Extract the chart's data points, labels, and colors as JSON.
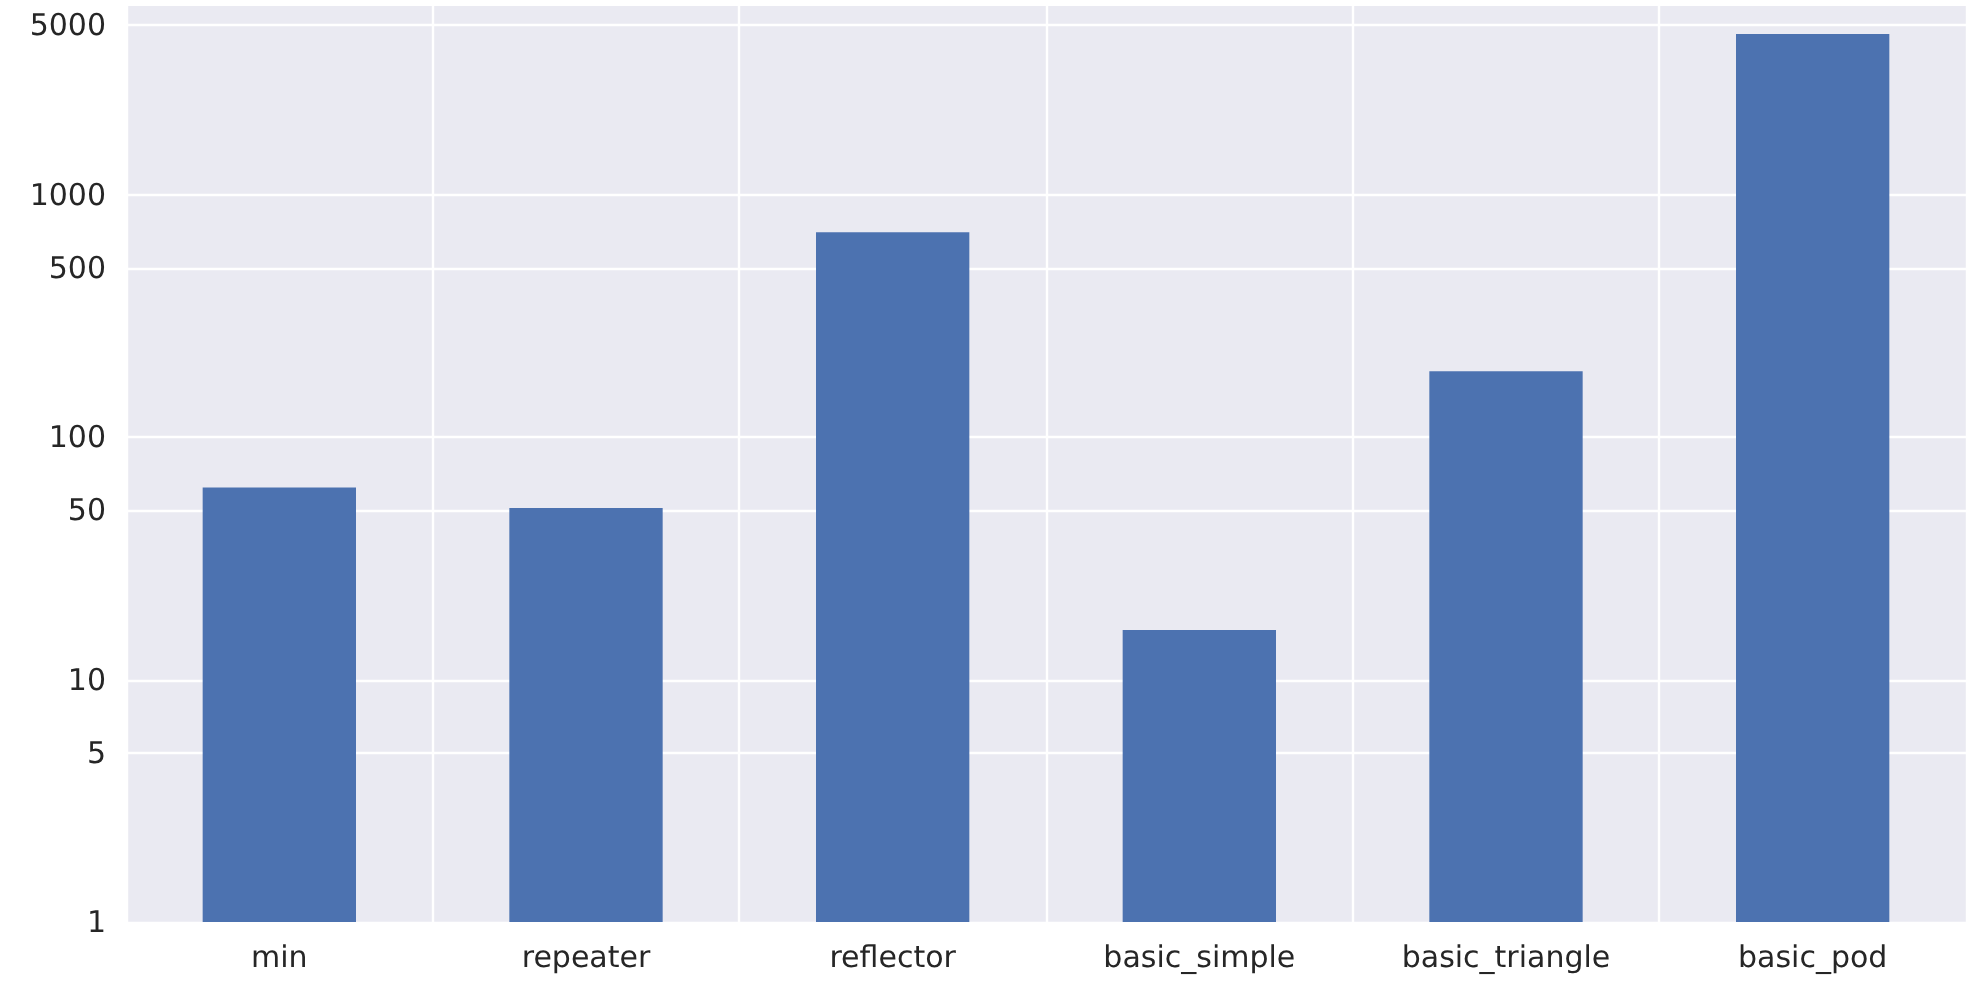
{
  "chart_data": {
    "type": "bar",
    "categories": [
      "min",
      "repeater",
      "reflector",
      "basic_simple",
      "basic_triangle",
      "basic_pod"
    ],
    "values": [
      62,
      51,
      700,
      16,
      187,
      4600
    ],
    "color": "#4c72b0",
    "log": "y",
    "ylim": [
      1,
      6000
    ],
    "yticks": [
      1,
      5,
      10,
      50,
      100,
      500,
      1000,
      5000
    ],
    "grid": true
  }
}
